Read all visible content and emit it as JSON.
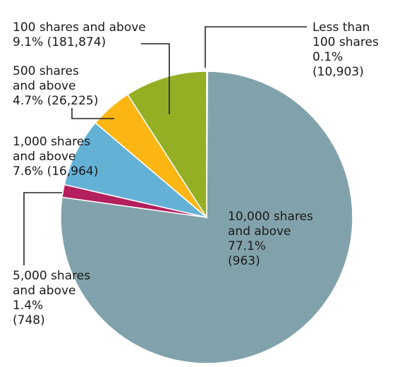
{
  "chart_data": {
    "type": "pie",
    "start_angle_deg": 0,
    "direction": "clockwise",
    "slices": [
      {
        "category": "Less than 100 shares",
        "value": 0.1,
        "count": "10,903",
        "label_lines": [
          "Less than",
          "100 shares",
          "0.1%",
          "(10,903)"
        ],
        "color": "#e0a070"
      },
      {
        "category": "10,000 shares and above",
        "value": 77.1,
        "count": "963",
        "label_lines": [
          "10,000 shares",
          "and above",
          "77.1%",
          "(963)"
        ],
        "color": "#82a2ab"
      },
      {
        "category": "5,000 shares and above",
        "value": 1.4,
        "count": "748",
        "label_lines": [
          "5,000 shares",
          "and above",
          "1.4%",
          "(748)"
        ],
        "color": "#b41f5e"
      },
      {
        "category": "1,000 shares and above",
        "value": 7.6,
        "count": "16,964",
        "label_lines": [
          "1,000 shares",
          "and above",
          "7.6% (16,964)"
        ],
        "color": "#64b1d6"
      },
      {
        "category": "500 shares and above",
        "value": 4.7,
        "count": "26,225",
        "label_lines": [
          "500 shares",
          "and above",
          "4.7% (26,225)"
        ],
        "color": "#fcb614"
      },
      {
        "category": "100 shares and above",
        "value": 9.1,
        "count": "181,874",
        "label_lines": [
          "100 shares and above",
          "9.1% (181,874)"
        ],
        "color": "#95af25"
      }
    ]
  }
}
